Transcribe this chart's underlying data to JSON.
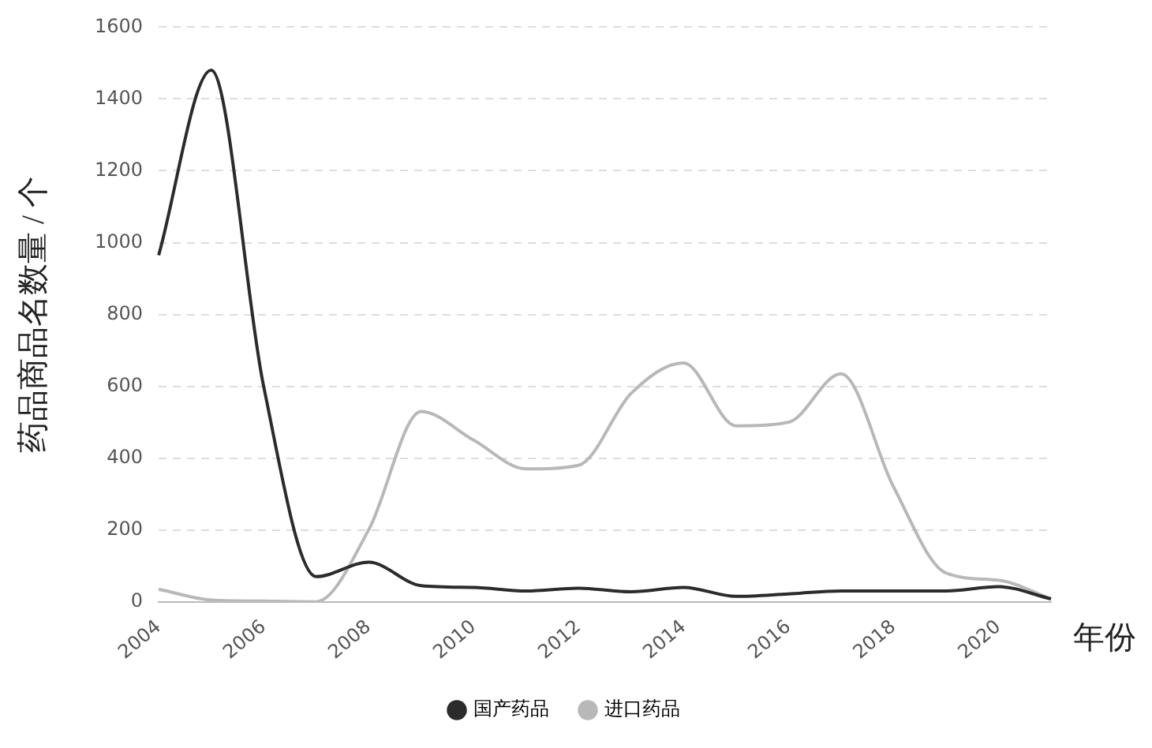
{
  "chart_data": {
    "type": "line",
    "xlabel": "年份",
    "ylabel": "药品商品名数量 / 个",
    "categories": [
      "2004",
      null,
      "2006",
      null,
      "2008",
      null,
      "2010",
      null,
      "2012",
      null,
      "2014",
      null,
      "2016",
      null,
      "2018",
      null,
      "2020",
      null
    ],
    "series": [
      {
        "name": "国产药品",
        "color": "#2b2b2b",
        "values": [
          965,
          1480,
          600,
          70,
          110,
          45,
          40,
          30,
          38,
          28,
          40,
          15,
          22,
          30,
          30,
          30,
          42,
          8
        ]
      },
      {
        "name": "进口药品",
        "color": "#b8b8b8",
        "values": [
          35,
          5,
          2,
          0,
          200,
          530,
          450,
          370,
          380,
          580,
          665,
          490,
          500,
          635,
          320,
          80,
          60,
          8
        ]
      }
    ],
    "ylim": [
      0,
      1600
    ],
    "yticks": [
      0,
      200,
      400,
      600,
      800,
      1000,
      1200,
      1400,
      1600
    ],
    "grid": "y",
    "legend": "bottom",
    "marker": "none",
    "line_style": "solid"
  }
}
